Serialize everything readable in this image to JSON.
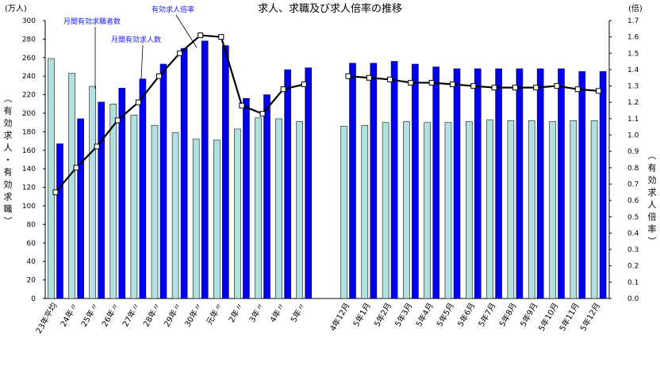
{
  "chart_data": {
    "type": "bar",
    "title": "求人、求職及び求人倍率の推移",
    "left_unit": "(万人)",
    "right_unit": "(倍)",
    "ylabel_left": "(有効求人・有効求職)",
    "ylabel_right": "(有効求人倍率)",
    "ylim_left": [
      0,
      300
    ],
    "left_ticks": [
      0,
      20,
      40,
      60,
      80,
      100,
      120,
      140,
      160,
      180,
      200,
      220,
      240,
      260,
      280,
      300
    ],
    "ylim_right": [
      0.0,
      1.7
    ],
    "right_ticks": [
      "0.0",
      "0.1",
      "0.2",
      "0.3",
      "0.4",
      "0.5",
      "0.6",
      "0.7",
      "0.8",
      "0.9",
      "1.0",
      "1.1",
      "1.2",
      "1.3",
      "1.4",
      "1.5",
      "1.6",
      "1.7"
    ],
    "categories": [
      "23年平均",
      "24年〃",
      "25年〃",
      "26年〃",
      "27年〃",
      "28年〃",
      "29年〃",
      "30年〃",
      "元年〃",
      "2年〃",
      "3年〃",
      "4年〃",
      "5年〃",
      "4年12月",
      "5年1月",
      "5年2月",
      "5年3月",
      "5年4月",
      "5年5月",
      "5年6月",
      "5年7月",
      "5年8月",
      "5年9月",
      "5年10月",
      "5年11月",
      "5年12月"
    ],
    "series": [
      {
        "name": "月間有効求職者数",
        "color": "#b0e0e0",
        "values": [
          259,
          243,
          229,
          210,
          198,
          187,
          179,
          172,
          171,
          183,
          195,
          194,
          191,
          186,
          187,
          190,
          191,
          190,
          190,
          191,
          193,
          192,
          192,
          191,
          192,
          192
        ]
      },
      {
        "name": "月間有効求人数",
        "color": "#0000ee",
        "values": [
          167,
          194,
          212,
          227,
          237,
          253,
          270,
          278,
          273,
          216,
          220,
          247,
          249,
          254,
          254,
          256,
          253,
          250,
          248,
          248,
          248,
          248,
          248,
          248,
          245,
          245
        ]
      },
      {
        "name": "有効求人倍率",
        "type": "line",
        "axis": "right",
        "color": "#000000",
        "values": [
          0.65,
          0.8,
          0.93,
          1.09,
          1.2,
          1.36,
          1.5,
          1.61,
          1.6,
          1.18,
          1.13,
          1.28,
          1.31,
          1.36,
          1.35,
          1.34,
          1.32,
          1.32,
          1.31,
          1.3,
          1.29,
          1.29,
          1.29,
          1.3,
          1.28,
          1.27
        ],
        "break_after_index": 12
      }
    ],
    "annotations": [
      "月間有効求職者数",
      "月間有効求人数",
      "有効求人倍率"
    ],
    "grid": false,
    "legend": "annotations"
  }
}
